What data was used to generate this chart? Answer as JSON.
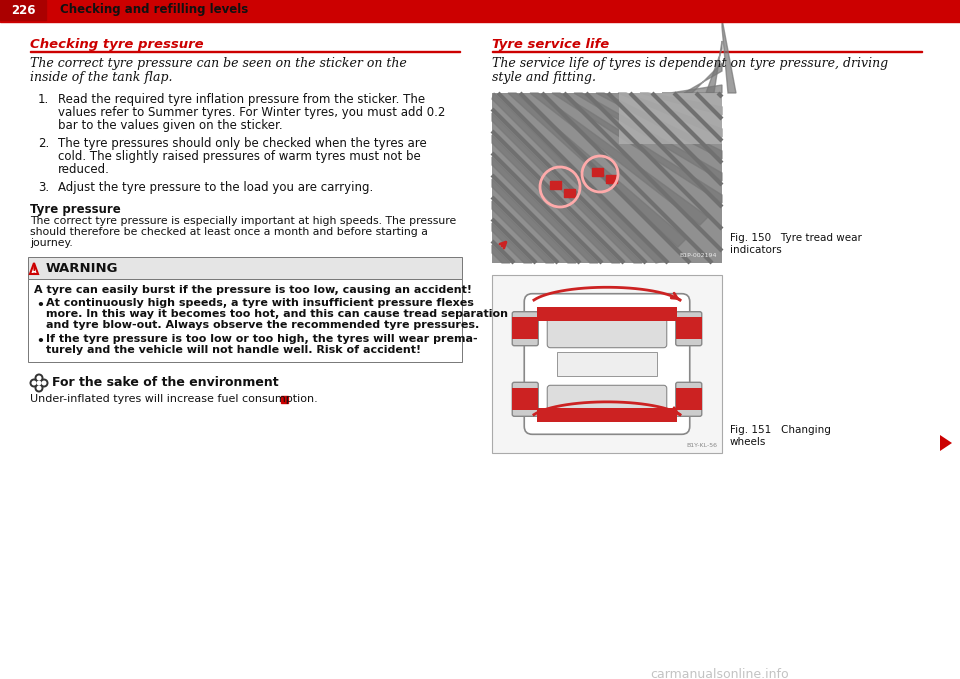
{
  "page_number": "226",
  "header_title": "Checking and refilling levels",
  "header_bg": "#cc0000",
  "header_number_bg": "#cc0000",
  "divider_color": "#cc0000",
  "bg_color": "#ffffff",
  "left_section_title": "Checking tyre pressure",
  "left_section_title_color": "#cc0000",
  "right_section_title": "Tyre service life",
  "right_section_title_color": "#cc0000",
  "fig150_line1": "Fig. 150   Tyre tread wear",
  "fig150_line2": "indicators",
  "fig151_line1": "Fig. 151   Changing",
  "fig151_line2": "wheels",
  "warning_title": "WARNING",
  "warning_bold_line": "A tyre can easily burst if the pressure is too low, causing an accident!",
  "env_title": "  For the sake of the environment",
  "env_body": "Under-inflated tyres will increase fuel consumption.",
  "arrow_color": "#cc0000",
  "watermark": "carmanualsonline.info"
}
